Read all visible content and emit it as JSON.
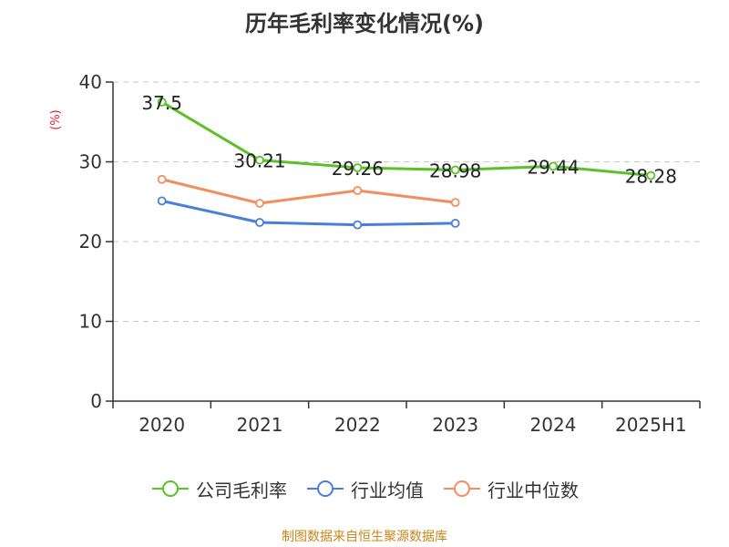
{
  "title": "历年毛利率变化情况(%)",
  "y_unit": "(%)",
  "source": "制图数据来自恒生聚源数据库",
  "colors": {
    "company": "#5ac126",
    "industry_avg": "#4a7fd9",
    "industry_median": "#f28d5f",
    "unit_red": "#e0202a",
    "grid": "#c8c8c8"
  },
  "legend": [
    {
      "name": "公司毛利率",
      "color": "#5ac126"
    },
    {
      "name": "行业均值",
      "color": "#4a7fd9"
    },
    {
      "name": "行业中位数",
      "color": "#f28d5f"
    }
  ],
  "chart_data": {
    "type": "line",
    "title": "历年毛利率变化情况(%)",
    "ylabel": "(%)",
    "xlabel": "",
    "categories": [
      "2020",
      "2021",
      "2022",
      "2023",
      "2024",
      "2025H1"
    ],
    "ylim": [
      0,
      40
    ],
    "yticks": [
      0,
      10,
      20,
      30,
      40
    ],
    "grid": "horizontal dashed",
    "legend_position": "bottom",
    "series": [
      {
        "name": "公司毛利率",
        "values": [
          37.5,
          30.21,
          29.26,
          28.98,
          29.44,
          28.28
        ],
        "labels": [
          "37.5",
          "30.21",
          "29.26",
          "28.98",
          "29.44",
          "28.28"
        ]
      },
      {
        "name": "行业均值",
        "values": [
          25.1,
          22.4,
          22.1,
          22.3,
          null,
          null
        ]
      },
      {
        "name": "行业中位数",
        "values": [
          27.8,
          24.8,
          26.4,
          24.9,
          null,
          null
        ]
      }
    ]
  }
}
